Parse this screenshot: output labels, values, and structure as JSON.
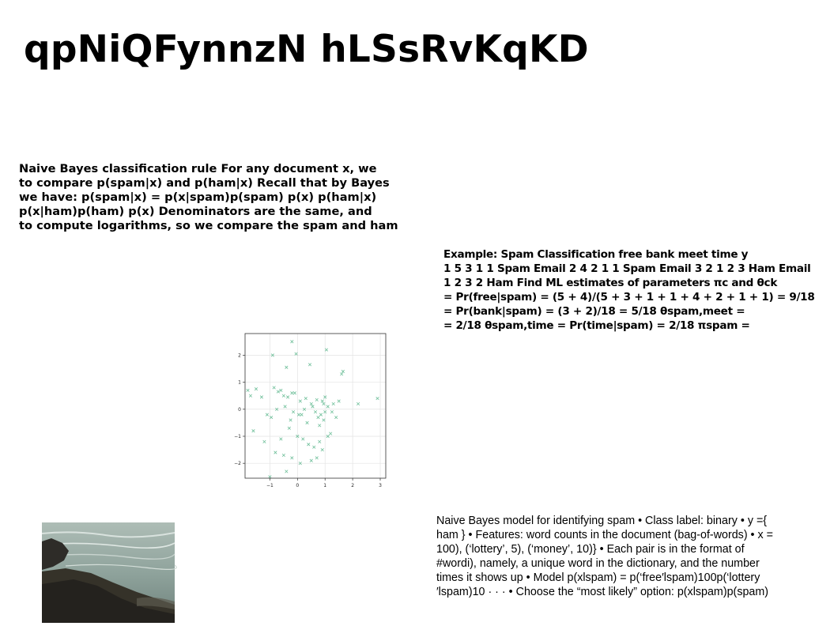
{
  "slide": {
    "title": "qpNiQFynnzN hLSsRvKqKD",
    "block1_lines": [
      "Naive Bayes classification rule For any document x, we",
      "to compare p(spam|x) and p(ham|x) Recall that by Bayes",
      "we have: p(spam|x) = p(x|spam)p(spam) p(x) p(ham|x)",
      "p(x|ham)p(ham) p(x) Denominators are the same, and",
      "to compute logarithms, so we compare the spam and ham"
    ],
    "block2_lines": [
      "Example: Spam Classification free bank meet time y",
      "1 5 3 1 1 Spam Email 2 4 2 1 1 Spam Email 3 2 1 2 3 Ham Email",
      "1 2 3 2 Ham Find ML estimates of parameters πc and θck",
      "= Pr(free|spam) = (5 + 4)/(5 + 3 + 1 + 1 + 4 + 2 + 1 + 1) = 9/18",
      "= Pr(bank|spam) = (3 + 2)/18 = 5/18 θspam,meet =",
      "= 2/18 θspam,time = Pr(time|spam) = 2/18 πspam ="
    ],
    "block3_lines": [
      "Naive Bayes model for identifying spam • Class label: binary • y ={",
      "ham } • Features: word counts in the document (bag-of-words) • x =",
      "100), (‘lottery’, 5), (‘money’, 10)} • Each pair is in the format of",
      "#wordi), namely, a unique word in the dictionary, and the number",
      "times it shows up • Model p(xlspam) = p(‘free′lspam)100p(‘lottery",
      "′lspam)10 · · · • Choose the “most likely” option: p(xlspam)p(spam)"
    ]
  },
  "chart_data": {
    "type": "scatter",
    "xlim": [
      -1.9,
      3.2
    ],
    "ylim": [
      -2.55,
      2.8
    ],
    "xticks": [
      -1,
      0,
      1,
      2,
      3
    ],
    "yticks": [
      -2,
      -1,
      0,
      1,
      2
    ],
    "xtick_labels": [
      "−1",
      "0",
      "1",
      "2",
      "3"
    ],
    "ytick_labels": [
      "−2",
      "−1",
      "0",
      "1",
      "2"
    ],
    "grid": true,
    "marker": "x",
    "color": "#6fbf9a",
    "x": [
      -0.2,
      -0.05,
      1.05,
      -0.9,
      0.45,
      -0.4,
      1.6,
      1.65,
      -1.8,
      -1.5,
      -1.7,
      -1.3,
      -0.85,
      -0.6,
      -0.2,
      -0.7,
      -0.5,
      -0.35,
      -0.1,
      0.1,
      0.3,
      0.5,
      0.7,
      0.9,
      1.0,
      1.1,
      1.3,
      1.5,
      2.2,
      2.9,
      -0.75,
      -0.45,
      -0.15,
      0.05,
      0.25,
      0.55,
      0.65,
      0.85,
      0.95,
      1.25,
      1.4,
      -1.1,
      -0.95,
      -0.25,
      0.15,
      0.35,
      0.75,
      0.8,
      0.95,
      1.0,
      -1.6,
      -1.2,
      -0.6,
      -0.3,
      0.0,
      0.2,
      0.4,
      0.6,
      0.8,
      1.2,
      -0.8,
      -0.5,
      -0.2,
      0.1,
      0.5,
      0.9,
      1.1,
      -1.0,
      -0.4,
      0.7
    ],
    "y": [
      2.5,
      2.05,
      2.2,
      2.0,
      1.65,
      1.55,
      1.3,
      1.4,
      0.7,
      0.75,
      0.5,
      0.45,
      0.8,
      0.7,
      0.6,
      0.65,
      0.5,
      0.45,
      0.6,
      0.3,
      0.4,
      0.2,
      0.35,
      0.3,
      0.45,
      0.1,
      0.2,
      0.3,
      0.2,
      0.4,
      0.0,
      0.1,
      -0.1,
      -0.2,
      0.0,
      0.1,
      -0.1,
      -0.2,
      0.2,
      -0.1,
      -0.3,
      -0.2,
      -0.3,
      -0.4,
      -0.2,
      -0.5,
      -0.3,
      -0.6,
      -0.4,
      -0.1,
      -0.8,
      -1.2,
      -1.1,
      -0.7,
      -1.0,
      -1.1,
      -1.3,
      -1.4,
      -1.2,
      -0.9,
      -1.6,
      -1.7,
      -1.8,
      -2.0,
      -1.9,
      -1.5,
      -1.0,
      -2.5,
      -2.3,
      -1.8
    ]
  }
}
